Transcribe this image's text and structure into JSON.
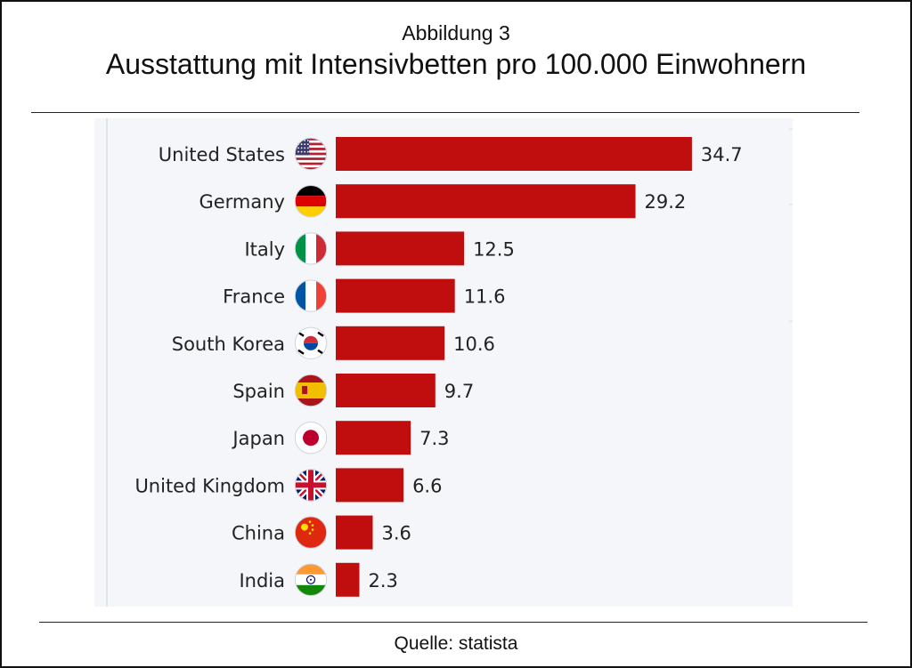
{
  "figure": {
    "label": "Abbildung 3",
    "title": "Ausstattung mit Intensivbetten pro 100.000 Einwohnern",
    "source": "Quelle: statista"
  },
  "chart_data": {
    "type": "bar",
    "orientation": "horizontal",
    "categories": [
      "United States",
      "Germany",
      "Italy",
      "France",
      "South Korea",
      "Spain",
      "Japan",
      "United Kingdom",
      "China",
      "India"
    ],
    "values": [
      34.7,
      29.2,
      12.5,
      11.6,
      10.6,
      9.7,
      7.3,
      6.6,
      3.6,
      2.3
    ],
    "value_labels": [
      "34.7",
      "29.2",
      "12.5",
      "11.6",
      "10.6",
      "9.7",
      "7.3",
      "6.6",
      "3.6",
      "2.3"
    ],
    "flags": [
      "flag-us-icon",
      "flag-de-icon",
      "flag-it-icon",
      "flag-fr-icon",
      "flag-kr-icon",
      "flag-es-icon",
      "flag-jp-icon",
      "flag-gb-icon",
      "flag-cn-icon",
      "flag-in-icon"
    ],
    "bar_color": "#c00d0e",
    "background_color": "#f4f6f9",
    "xlim": [
      0,
      40
    ],
    "title": "",
    "xlabel": "",
    "ylabel": "",
    "grid": false,
    "legend": "none"
  }
}
